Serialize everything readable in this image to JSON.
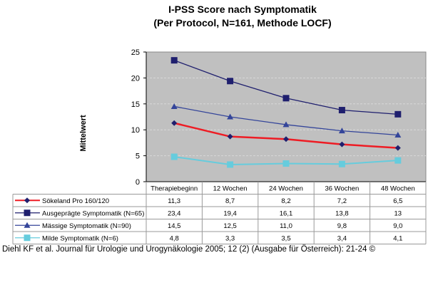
{
  "chart_data": {
    "type": "line",
    "title": "I-PSS Score nach Symptomatik",
    "subtitle": "(Per Protocol, N=161, Methode LOCF)",
    "ylabel": "Mittelwert",
    "xlabel": "",
    "ylim": [
      0,
      25
    ],
    "yticks": [
      "0",
      "5",
      "10",
      "15",
      "20",
      "25"
    ],
    "grid": true,
    "legend": "data-table-below",
    "categories": [
      "Therapiebeginn",
      "12 Wochen",
      "24 Wochen",
      "36 Wochen",
      "48 Wochen"
    ],
    "series": [
      {
        "name": "Sökeland Pro 160/120",
        "values": [
          11.3,
          8.7,
          8.2,
          7.2,
          6.5
        ],
        "labels": [
          "11,3",
          "8,7",
          "8,2",
          "7,2",
          "6,5"
        ],
        "color": "#ee1c24",
        "marker_color": "#1f1f6e",
        "marker": "diamond"
      },
      {
        "name": "Ausgeprägte Symptomatik (N=65)",
        "values": [
          23.4,
          19.4,
          16.1,
          13.8,
          13
        ],
        "labels": [
          "23,4",
          "19,4",
          "16,1",
          "13,8",
          "13"
        ],
        "color": "#1f1f6e",
        "marker_color": "#1f1f6e",
        "marker": "square"
      },
      {
        "name": "Mässige Symptomatik (N=90)",
        "values": [
          14.5,
          12.5,
          11.0,
          9.8,
          9.0
        ],
        "labels": [
          "14,5",
          "12,5",
          "11,0",
          "9,8",
          "9,0"
        ],
        "color": "#34459a",
        "marker_color": "#34459a",
        "marker": "triangle"
      },
      {
        "name": "Milde Symptomatik (N=6)",
        "values": [
          4.8,
          3.3,
          3.5,
          3.4,
          4.1
        ],
        "labels": [
          "4,8",
          "3,3",
          "3,5",
          "3,4",
          "4,1"
        ],
        "color": "#66ccdd",
        "marker_color": "#66ccdd",
        "marker": "square"
      }
    ],
    "plot_background": "#c0c0c0"
  },
  "citation": "Diehl KF et al. Journal für Urologie und Urogynäkologie 2005; 12 (2) (Ausgabe für Österreich): 21-24 ©"
}
